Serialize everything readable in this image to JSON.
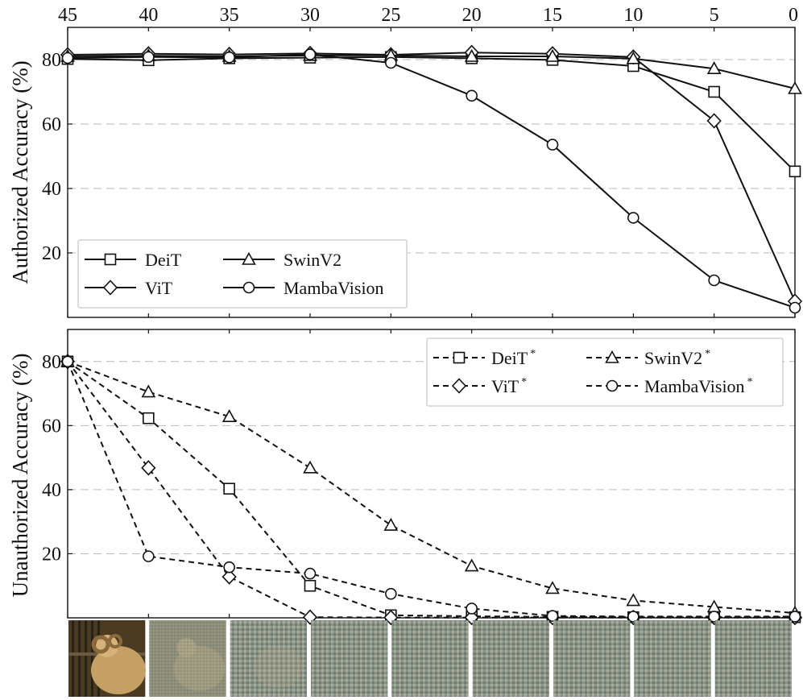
{
  "chart_data": [
    {
      "type": "line",
      "panel": "top",
      "ylabel": "Authorized Accuracy (%)",
      "xlabel": "",
      "x": [
        45,
        40,
        35,
        30,
        25,
        20,
        15,
        10,
        5,
        0
      ],
      "x_tick_labels": [
        "45",
        "40",
        "35",
        "30",
        "25",
        "20",
        "15",
        "10",
        "5",
        "0"
      ],
      "xlim": [
        45,
        0
      ],
      "ylim": [
        0,
        90
      ],
      "y_ticks": [
        20,
        40,
        60,
        80
      ],
      "y_tick_labels": [
        "20",
        "40",
        "60",
        "80"
      ],
      "grid": "horizontal dashed",
      "legend_position": "bottom-left",
      "line_style": "solid",
      "series": [
        {
          "name": "DeiT",
          "marker": "square",
          "values": [
            80.2,
            79.8,
            80.4,
            80.6,
            80.8,
            80.4,
            79.9,
            78.0,
            70.0,
            45.3
          ]
        },
        {
          "name": "ViT",
          "marker": "diamond",
          "values": [
            81.5,
            81.8,
            81.6,
            81.9,
            81.5,
            82.2,
            81.8,
            80.8,
            61.0,
            5.0
          ]
        },
        {
          "name": "SwinV2",
          "marker": "triangle",
          "values": [
            81.0,
            81.2,
            81.0,
            81.3,
            81.3,
            81.0,
            81.0,
            80.3,
            77.2,
            71.0
          ]
        },
        {
          "name": "MambaVision",
          "marker": "circle",
          "values": [
            80.5,
            80.8,
            80.7,
            81.6,
            79.0,
            68.8,
            53.6,
            30.9,
            11.5,
            3.0
          ]
        }
      ]
    },
    {
      "type": "line",
      "panel": "bottom",
      "ylabel": "Unauthorized Accuracy (%)",
      "xlabel": "",
      "x": [
        45,
        40,
        35,
        30,
        25,
        20,
        15,
        10,
        5,
        0
      ],
      "xlim": [
        45,
        0
      ],
      "ylim": [
        0,
        90
      ],
      "y_ticks": [
        20,
        40,
        60,
        80
      ],
      "y_tick_labels": [
        "20",
        "40",
        "60",
        "80"
      ],
      "grid": "horizontal dashed",
      "legend_position": "top-right",
      "line_style": "dashed",
      "series": [
        {
          "name": "DeiT",
          "superscript": "*",
          "marker": "square",
          "values": [
            80.0,
            62.3,
            40.3,
            10.0,
            0.8,
            0.5,
            0.3,
            0.2,
            0.2,
            0.2
          ]
        },
        {
          "name": "ViT",
          "superscript": "*",
          "marker": "diamond",
          "values": [
            80.0,
            46.8,
            12.8,
            0.2,
            0.1,
            0.1,
            0.1,
            0.1,
            0.1,
            0.1
          ]
        },
        {
          "name": "SwinV2",
          "superscript": "*",
          "marker": "triangle",
          "values": [
            80.0,
            70.5,
            62.8,
            46.8,
            28.9,
            16.2,
            9.2,
            5.4,
            3.4,
            1.5
          ]
        },
        {
          "name": "MambaVision",
          "superscript": "*",
          "marker": "circle",
          "values": [
            80.0,
            19.2,
            15.8,
            13.8,
            7.5,
            2.9,
            0.6,
            0.4,
            0.4,
            0.4
          ]
        }
      ]
    }
  ],
  "thumbnails": {
    "count": 9,
    "alt": "progressively noised sample images (ram)"
  },
  "colors": {
    "line": "#111111",
    "grid": "#bbbbbb",
    "background": "#ffffff",
    "sheep_bg": "#4a3a22",
    "sheep_fur": "#c4a064",
    "noise_a": "#7e8a74",
    "noise_b": "#9aa39a"
  }
}
